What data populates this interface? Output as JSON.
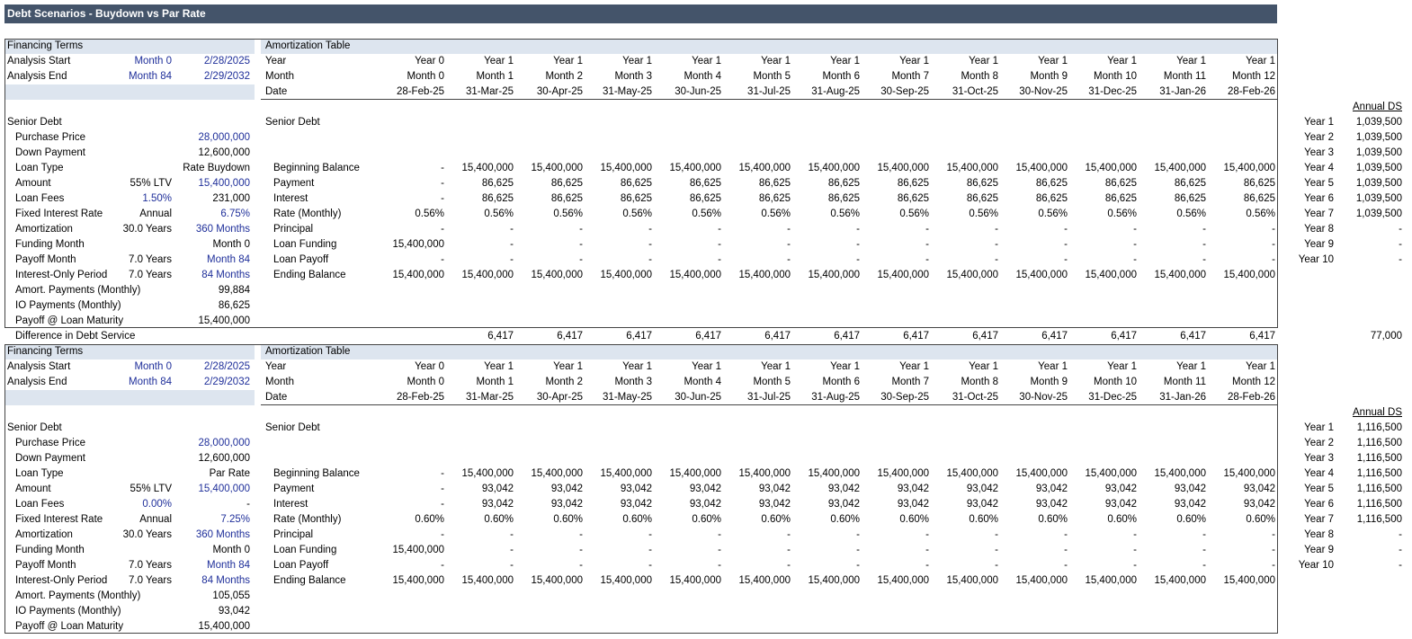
{
  "header": {
    "title": "Debt Scenarios - Buydown vs Par Rate"
  },
  "scenarios": [
    {
      "terms": {
        "title": "Financing Terms",
        "period": [
          {
            "label": "Analysis Start",
            "note": "Month 0",
            "value": "2/28/2025"
          },
          {
            "label": "Analysis End",
            "note": "Month 84",
            "value": "2/29/2032"
          }
        ],
        "section": "Senior Debt",
        "rows": [
          {
            "label": "Purchase Price",
            "value": "28,000,000"
          },
          {
            "label": "Down Payment",
            "value": "12,600,000"
          },
          {
            "label": "Loan Type",
            "value": "Rate Buydown"
          },
          {
            "label": "Amount",
            "note": "55% LTV",
            "value": "15,400,000"
          },
          {
            "label": "Loan Fees",
            "note": "1.50%",
            "value": "231,000"
          },
          {
            "label": "Fixed Interest Rate",
            "note": "Annual",
            "value": "6.75%"
          },
          {
            "label": "Amortization",
            "note": "30.0 Years",
            "value": "360 Months"
          },
          {
            "label": "Funding Month",
            "value": "Month 0"
          },
          {
            "label": "Payoff Month",
            "note": "7.0 Years",
            "value": "Month 84"
          },
          {
            "label": "Interest-Only Period",
            "note": "7.0 Years",
            "value": "84 Months"
          },
          {
            "label": "Amort. Payments (Monthly)",
            "value": "99,884"
          },
          {
            "label": "IO Payments (Monthly)",
            "value": "86,625"
          },
          {
            "label": "Payoff @ Loan Maturity",
            "value": "15,400,000"
          }
        ]
      },
      "amortization": {
        "title": "Amortization Table",
        "header": [
          {
            "label": "Year",
            "values": [
              "Year 0",
              "Year 1",
              "Year 1",
              "Year 1",
              "Year 1",
              "Year 1",
              "Year 1",
              "Year 1",
              "Year 1",
              "Year 1",
              "Year 1",
              "Year 1",
              "Year 1"
            ]
          },
          {
            "label": "Month",
            "values": [
              "Month 0",
              "Month 1",
              "Month 2",
              "Month 3",
              "Month 4",
              "Month 5",
              "Month 6",
              "Month 7",
              "Month 8",
              "Month 9",
              "Month 10",
              "Month 11",
              "Month 12"
            ]
          },
          {
            "label": "Date",
            "values": [
              "28-Feb-25",
              "31-Mar-25",
              "30-Apr-25",
              "31-May-25",
              "30-Jun-25",
              "31-Jul-25",
              "31-Aug-25",
              "30-Sep-25",
              "31-Oct-25",
              "30-Nov-25",
              "31-Dec-25",
              "31-Jan-26",
              "28-Feb-26"
            ]
          }
        ],
        "section": "Senior Debt",
        "rows": [
          {
            "label": "Beginning Balance",
            "values": [
              "-",
              "15,400,000",
              "15,400,000",
              "15,400,000",
              "15,400,000",
              "15,400,000",
              "15,400,000",
              "15,400,000",
              "15,400,000",
              "15,400,000",
              "15,400,000",
              "15,400,000",
              "15,400,000"
            ]
          },
          {
            "label": "Payment",
            "values": [
              "-",
              "86,625",
              "86,625",
              "86,625",
              "86,625",
              "86,625",
              "86,625",
              "86,625",
              "86,625",
              "86,625",
              "86,625",
              "86,625",
              "86,625"
            ]
          },
          {
            "label": "Interest",
            "values": [
              "-",
              "86,625",
              "86,625",
              "86,625",
              "86,625",
              "86,625",
              "86,625",
              "86,625",
              "86,625",
              "86,625",
              "86,625",
              "86,625",
              "86,625"
            ]
          },
          {
            "label": "Rate (Monthly)",
            "values": [
              "0.56%",
              "0.56%",
              "0.56%",
              "0.56%",
              "0.56%",
              "0.56%",
              "0.56%",
              "0.56%",
              "0.56%",
              "0.56%",
              "0.56%",
              "0.56%",
              "0.56%"
            ]
          },
          {
            "label": "Principal",
            "values": [
              "-",
              "-",
              "-",
              "-",
              "-",
              "-",
              "-",
              "-",
              "-",
              "-",
              "-",
              "-",
              "-"
            ]
          },
          {
            "label": "Loan Funding",
            "values": [
              "15,400,000",
              "-",
              "-",
              "-",
              "-",
              "-",
              "-",
              "-",
              "-",
              "-",
              "-",
              "-",
              "-"
            ]
          },
          {
            "label": "Loan Payoff",
            "values": [
              "-",
              "-",
              "-",
              "-",
              "-",
              "-",
              "-",
              "-",
              "-",
              "-",
              "-",
              "-",
              "-"
            ]
          },
          {
            "label": "Ending Balance",
            "values": [
              "15,400,000",
              "15,400,000",
              "15,400,000",
              "15,400,000",
              "15,400,000",
              "15,400,000",
              "15,400,000",
              "15,400,000",
              "15,400,000",
              "15,400,000",
              "15,400,000",
              "15,400,000",
              "15,400,000"
            ]
          }
        ]
      },
      "annual": {
        "title": "Annual DS",
        "rows": [
          {
            "year": "Year 1",
            "value": "1,039,500"
          },
          {
            "year": "Year 2",
            "value": "1,039,500"
          },
          {
            "year": "Year 3",
            "value": "1,039,500"
          },
          {
            "year": "Year 4",
            "value": "1,039,500"
          },
          {
            "year": "Year 5",
            "value": "1,039,500"
          },
          {
            "year": "Year 6",
            "value": "1,039,500"
          },
          {
            "year": "Year 7",
            "value": "1,039,500"
          },
          {
            "year": "Year 8",
            "value": "-"
          },
          {
            "year": "Year 9",
            "value": "-"
          },
          {
            "year": "Year 10",
            "value": "-"
          }
        ]
      }
    },
    {
      "terms": {
        "title": "Financing Terms",
        "period": [
          {
            "label": "Analysis Start",
            "note": "Month 0",
            "value": "2/28/2025"
          },
          {
            "label": "Analysis End",
            "note": "Month 84",
            "value": "2/29/2032"
          }
        ],
        "section": "Senior Debt",
        "rows": [
          {
            "label": "Purchase Price",
            "value": "28,000,000"
          },
          {
            "label": "Down Payment",
            "value": "12,600,000"
          },
          {
            "label": "Loan Type",
            "value": "Par Rate"
          },
          {
            "label": "Amount",
            "note": "55% LTV",
            "value": "15,400,000"
          },
          {
            "label": "Loan Fees",
            "note": "0.00%",
            "value": "-"
          },
          {
            "label": "Fixed Interest Rate",
            "note": "Annual",
            "value": "7.25%"
          },
          {
            "label": "Amortization",
            "note": "30.0 Years",
            "value": "360 Months"
          },
          {
            "label": "Funding Month",
            "value": "Month 0"
          },
          {
            "label": "Payoff Month",
            "note": "7.0 Years",
            "value": "Month 84"
          },
          {
            "label": "Interest-Only Period",
            "note": "7.0 Years",
            "value": "84 Months"
          },
          {
            "label": "Amort. Payments (Monthly)",
            "value": "105,055"
          },
          {
            "label": "IO Payments (Monthly)",
            "value": "93,042"
          },
          {
            "label": "Payoff @ Loan Maturity",
            "value": "15,400,000"
          }
        ]
      },
      "amortization": {
        "title": "Amortization Table",
        "header": [
          {
            "label": "Year",
            "values": [
              "Year 0",
              "Year 1",
              "Year 1",
              "Year 1",
              "Year 1",
              "Year 1",
              "Year 1",
              "Year 1",
              "Year 1",
              "Year 1",
              "Year 1",
              "Year 1",
              "Year 1"
            ]
          },
          {
            "label": "Month",
            "values": [
              "Month 0",
              "Month 1",
              "Month 2",
              "Month 3",
              "Month 4",
              "Month 5",
              "Month 6",
              "Month 7",
              "Month 8",
              "Month 9",
              "Month 10",
              "Month 11",
              "Month 12"
            ]
          },
          {
            "label": "Date",
            "values": [
              "28-Feb-25",
              "31-Mar-25",
              "30-Apr-25",
              "31-May-25",
              "30-Jun-25",
              "31-Jul-25",
              "31-Aug-25",
              "30-Sep-25",
              "31-Oct-25",
              "30-Nov-25",
              "31-Dec-25",
              "31-Jan-26",
              "28-Feb-26"
            ]
          }
        ],
        "section": "Senior Debt",
        "rows": [
          {
            "label": "Beginning Balance",
            "values": [
              "-",
              "15,400,000",
              "15,400,000",
              "15,400,000",
              "15,400,000",
              "15,400,000",
              "15,400,000",
              "15,400,000",
              "15,400,000",
              "15,400,000",
              "15,400,000",
              "15,400,000",
              "15,400,000"
            ]
          },
          {
            "label": "Payment",
            "values": [
              "-",
              "93,042",
              "93,042",
              "93,042",
              "93,042",
              "93,042",
              "93,042",
              "93,042",
              "93,042",
              "93,042",
              "93,042",
              "93,042",
              "93,042"
            ]
          },
          {
            "label": "Interest",
            "values": [
              "-",
              "93,042",
              "93,042",
              "93,042",
              "93,042",
              "93,042",
              "93,042",
              "93,042",
              "93,042",
              "93,042",
              "93,042",
              "93,042",
              "93,042"
            ]
          },
          {
            "label": "Rate (Monthly)",
            "values": [
              "0.60%",
              "0.60%",
              "0.60%",
              "0.60%",
              "0.60%",
              "0.60%",
              "0.60%",
              "0.60%",
              "0.60%",
              "0.60%",
              "0.60%",
              "0.60%",
              "0.60%"
            ]
          },
          {
            "label": "Principal",
            "values": [
              "-",
              "-",
              "-",
              "-",
              "-",
              "-",
              "-",
              "-",
              "-",
              "-",
              "-",
              "-",
              "-"
            ]
          },
          {
            "label": "Loan Funding",
            "values": [
              "15,400,000",
              "-",
              "-",
              "-",
              "-",
              "-",
              "-",
              "-",
              "-",
              "-",
              "-",
              "-",
              "-"
            ]
          },
          {
            "label": "Loan Payoff",
            "values": [
              "-",
              "-",
              "-",
              "-",
              "-",
              "-",
              "-",
              "-",
              "-",
              "-",
              "-",
              "-",
              "-"
            ]
          },
          {
            "label": "Ending Balance",
            "values": [
              "15,400,000",
              "15,400,000",
              "15,400,000",
              "15,400,000",
              "15,400,000",
              "15,400,000",
              "15,400,000",
              "15,400,000",
              "15,400,000",
              "15,400,000",
              "15,400,000",
              "15,400,000",
              "15,400,000"
            ]
          }
        ]
      },
      "annual": {
        "title": "Annual DS",
        "rows": [
          {
            "year": "Year 1",
            "value": "1,116,500"
          },
          {
            "year": "Year 2",
            "value": "1,116,500"
          },
          {
            "year": "Year 3",
            "value": "1,116,500"
          },
          {
            "year": "Year 4",
            "value": "1,116,500"
          },
          {
            "year": "Year 5",
            "value": "1,116,500"
          },
          {
            "year": "Year 6",
            "value": "1,116,500"
          },
          {
            "year": "Year 7",
            "value": "1,116,500"
          },
          {
            "year": "Year 8",
            "value": "-"
          },
          {
            "year": "Year 9",
            "value": "-"
          },
          {
            "year": "Year 10",
            "value": "-"
          }
        ]
      }
    }
  ],
  "difference": {
    "label": "Difference in Debt Service",
    "values": [
      "6,417",
      "6,417",
      "6,417",
      "6,417",
      "6,417",
      "6,417",
      "6,417",
      "6,417",
      "6,417",
      "6,417",
      "6,417",
      "6,417"
    ],
    "total": "77,000"
  }
}
